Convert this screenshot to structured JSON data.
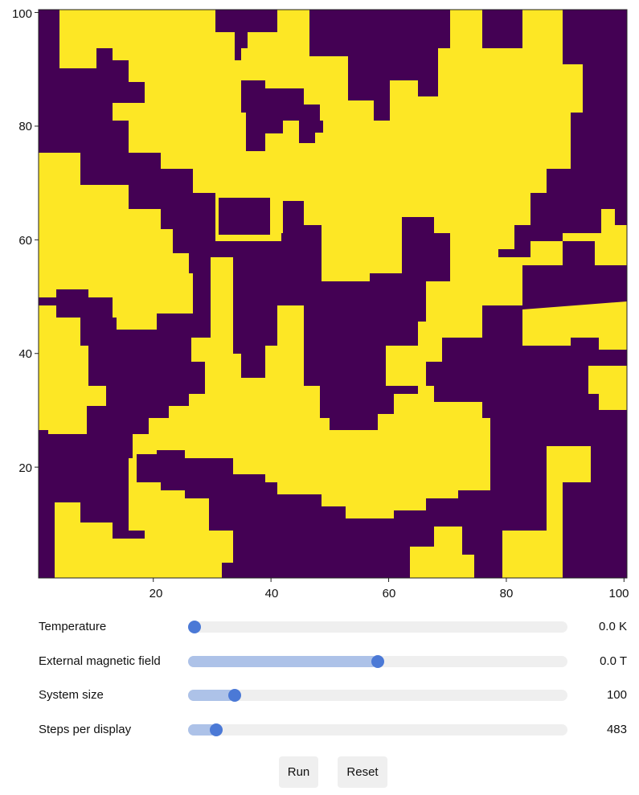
{
  "chart_data": {
    "type": "heatmap",
    "title": "",
    "xlabel": "",
    "ylabel": "",
    "xlim": [
      1,
      100
    ],
    "ylim": [
      1,
      100
    ],
    "x_ticks": [
      20,
      40,
      60,
      80,
      100
    ],
    "y_ticks": [
      20,
      40,
      60,
      80,
      100
    ],
    "x_tick_labels": [
      "20",
      "40",
      "60",
      "80",
      "100"
    ],
    "y_tick_labels": [
      "20",
      "40",
      "60",
      "80",
      "100"
    ],
    "colors": {
      "spin_up": "#fde725",
      "spin_down": "#440154"
    },
    "grid": false
  },
  "controls": {
    "temperature": {
      "label": "Temperature",
      "value": "0.0 K",
      "level": 0.0
    },
    "field": {
      "label": "External magnetic field",
      "value": "0.0 T",
      "level": 0.5
    },
    "size": {
      "label": "System size",
      "value": "100",
      "level": 0.11
    },
    "steps": {
      "label": "Steps per display",
      "value": "483",
      "level": 0.06
    }
  },
  "buttons": {
    "run": "Run",
    "reset": "Reset"
  }
}
